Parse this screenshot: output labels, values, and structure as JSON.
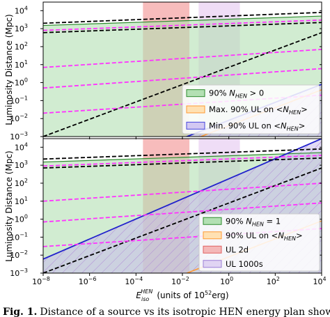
{
  "figure": {
    "caption_bold": "Fig. 1.",
    "caption_text": "Distance of a source vs its isotropic HEN energy plan showing"
  },
  "chart_data": [
    {
      "type": "line",
      "panel": "top",
      "xlabel_main": "E",
      "xlabel_sub": "iso",
      "xlabel_sup": "HEN",
      "xlabel_unit_pre": "(units of 10",
      "xlabel_unit_sup": "52",
      "xlabel_unit_post": "erg)",
      "ylabel": "Luminosity Distance (Mpc)",
      "xscale": "log",
      "yscale": "log",
      "xlim": [
        1e-08,
        10000.0
      ],
      "ylim": [
        0.001,
        30000.0
      ],
      "x_ticks": [
        "10",
        "10",
        "10",
        "10",
        "10",
        "10",
        "10"
      ],
      "x_tick_exps": [
        "−8",
        "−6",
        "−4",
        "−2",
        "0",
        "2",
        "4"
      ],
      "y_ticks": [
        "10",
        "10",
        "10",
        "10",
        "10",
        "10",
        "10",
        "10"
      ],
      "y_tick_exps": [
        "−3",
        "−2",
        "−1",
        "0",
        "1",
        "2",
        "3",
        "4"
      ],
      "legend_position": "lower right",
      "bands": [
        {
          "name": "UL 2d",
          "x": [
            0.0002,
            0.02
          ],
          "color": "#f4a5a5",
          "legend": false
        },
        {
          "name": "UL 1000s",
          "x": [
            0.05,
            3
          ],
          "color": "#ead2f3",
          "legend": false
        }
      ],
      "series": [
        {
          "name": "90% N_HEN > 0",
          "style": "fill",
          "color": "#b3e0b3",
          "edge": "#2e8b2e",
          "lower": [
            [
              1e-08,
              0.001
            ],
            [
              10000.0,
              0.001
            ]
          ],
          "upper": [
            [
              1e-08,
              1500
            ],
            [
              10000.0,
              5000
            ]
          ]
        },
        {
          "name": "Max. 90% UL on <N_HEN>",
          "style": "line",
          "color": "#ff9933",
          "x": [
            1e-08,
            10000.0
          ],
          "y": [
            4e-07,
            0.4
          ]
        },
        {
          "name": "Min. 90% UL on <N_HEN>",
          "style": "fill-hatch",
          "color": "#c9bcec",
          "edge": "#2222cc",
          "x": [
            1e-08,
            10000.0
          ],
          "y": [
            8e-07,
            0.8
          ]
        },
        {
          "name": "",
          "style": "dashed",
          "color": "#000000",
          "x": [
            1e-08,
            10000.0
          ],
          "y": [
            2000,
            8000
          ]
        },
        {
          "name": "",
          "style": "dashed",
          "color": "#000000",
          "x": [
            1e-08,
            10000.0
          ],
          "y": [
            600,
            2200
          ]
        },
        {
          "name": "",
          "style": "dashed",
          "color": "#000000",
          "x": [
            1e-08,
            10000.0
          ],
          "y": [
            0.001,
            600
          ]
        },
        {
          "name": "",
          "style": "dashed",
          "color": "#ff33ff",
          "x": [
            1e-08,
            10000.0
          ],
          "y": [
            800,
            3000
          ]
        },
        {
          "name": "",
          "style": "dashed",
          "color": "#ff33ff",
          "x": [
            1e-08,
            10000.0
          ],
          "y": [
            7,
            70
          ]
        },
        {
          "name": "",
          "style": "dashed",
          "color": "#ff33ff",
          "x": [
            1e-08,
            10000.0
          ],
          "y": [
            0.5,
            6
          ]
        },
        {
          "name": "",
          "style": "dashed",
          "color": "#ff33ff",
          "x": [
            1e-08,
            10000.0
          ],
          "y": [
            0.02,
            0.2
          ]
        }
      ],
      "legend": [
        {
          "label_pre": "90% ",
          "label_var": "N",
          "label_sub": "HEN",
          "label_post": " > 0",
          "swatch": "#b3e0b3",
          "edge": "#2e8b2e"
        },
        {
          "label_pre": "Max. 90% UL on <",
          "label_var": "N",
          "label_sub": "HEN",
          "label_post": ">",
          "swatch": "#ffe1b3",
          "edge": "#ff9933"
        },
        {
          "label_pre": "Min. 90% UL on <",
          "label_var": "N",
          "label_sub": "HEN",
          "label_post": ">",
          "swatch": "#d2c8f2",
          "edge": "#4444dd"
        }
      ]
    },
    {
      "type": "line",
      "panel": "bottom",
      "ylabel": "Luminosity Distance (Mpc)",
      "xscale": "log",
      "yscale": "log",
      "xlim": [
        1e-08,
        10000.0
      ],
      "ylim": [
        0.001,
        30000.0
      ],
      "bands": [
        {
          "name": "UL 2d",
          "x": [
            0.0002,
            0.02
          ],
          "color": "#f4a5a5",
          "legend": true
        },
        {
          "name": "UL 1000s",
          "x": [
            0.05,
            3
          ],
          "color": "#ead2f3",
          "legend": true
        }
      ],
      "series": [
        {
          "name": "90% N_HEN = 1",
          "style": "fill",
          "color": "#b3e0b3",
          "edge": "#2e8b2e",
          "lower": [
            [
              1e-08,
              0.001
            ],
            [
              10000.0,
              0.001
            ]
          ],
          "upper": [
            [
              1e-08,
              1500
            ],
            [
              10000.0,
              5000
            ]
          ]
        },
        {
          "name": "90% UL on <N_HEN>",
          "style": "line",
          "color": "#ff9933",
          "x": [
            1e-08,
            10000.0
          ],
          "y": [
            8e-07,
            0.8
          ]
        },
        {
          "name": "",
          "style": "fill-hatch",
          "color": "#c9bcec",
          "edge": "#2222cc",
          "x": [
            1e-08,
            10000.0
          ],
          "y": [
            0.006,
            30000
          ]
        },
        {
          "name": "",
          "style": "dashed",
          "color": "#000000",
          "x": [
            1e-08,
            10000.0
          ],
          "y": [
            2200,
            8000
          ]
        },
        {
          "name": "",
          "style": "dashed",
          "color": "#000000",
          "x": [
            1e-08,
            10000.0
          ],
          "y": [
            700,
            2500
          ]
        },
        {
          "name": "",
          "style": "dashed",
          "color": "#000000",
          "x": [
            1e-08,
            10000.0
          ],
          "y": [
            0.001,
            700
          ]
        },
        {
          "name": "",
          "style": "dashed",
          "color": "#ff33ff",
          "x": [
            1e-08,
            10000.0
          ],
          "y": [
            900,
            3500
          ]
        },
        {
          "name": "",
          "style": "dashed",
          "color": "#ff33ff",
          "x": [
            1e-08,
            10000.0
          ],
          "y": [
            10,
            100
          ]
        },
        {
          "name": "",
          "style": "dashed",
          "color": "#ff33ff",
          "x": [
            1e-08,
            10000.0
          ],
          "y": [
            0.7,
            8
          ]
        },
        {
          "name": "",
          "style": "dashed",
          "color": "#ff33ff",
          "x": [
            1e-08,
            10000.0
          ],
          "y": [
            0.03,
            0.3
          ]
        }
      ],
      "legend": [
        {
          "label_pre": "90% ",
          "label_var": "N",
          "label_sub": "HEN",
          "label_post": " = 1",
          "swatch": "#b3e0b3",
          "edge": "#2e8b2e"
        },
        {
          "label_pre": "90% UL on <",
          "label_var": "N",
          "label_sub": "HEN",
          "label_post": ">",
          "swatch": "#ffe1b3",
          "edge": "#ff9933"
        },
        {
          "label_pre": "UL 2d",
          "label_var": "",
          "label_sub": "",
          "label_post": "",
          "swatch": "#f4b8b8",
          "edge": "#e06060"
        },
        {
          "label_pre": "UL 1000s",
          "label_var": "",
          "label_sub": "",
          "label_post": "",
          "swatch": "#e0d4f3",
          "edge": "#9b7fd6"
        }
      ]
    }
  ]
}
